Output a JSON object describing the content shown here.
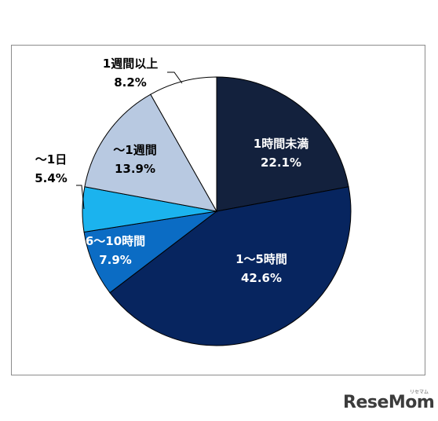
{
  "chart_data": {
    "type": "pie",
    "title": "",
    "slices": [
      {
        "label": "1時間未満",
        "value": 22.1,
        "value_label": "22.1%",
        "color": "#13213d"
      },
      {
        "label": "1～5時間",
        "value": 42.6,
        "value_label": "42.6%",
        "color": "#07255f"
      },
      {
        "label": "6～10時間",
        "value": 7.9,
        "value_label": "7.9%",
        "color": "#0b6cc4"
      },
      {
        "label": "～1日",
        "value": 5.4,
        "value_label": "5.4%",
        "color": "#1bb3ee"
      },
      {
        "label": "～1週間",
        "value": 13.9,
        "value_label": "13.9%",
        "color": "#b8c9e1"
      },
      {
        "label": "1週間以上",
        "value": 8.2,
        "value_label": "8.2%",
        "color": "#ffffff"
      }
    ],
    "start": "12 o'clock",
    "direction": "clockwise"
  },
  "logo": {
    "text": "ReseMom",
    "kana": "リセマム"
  }
}
